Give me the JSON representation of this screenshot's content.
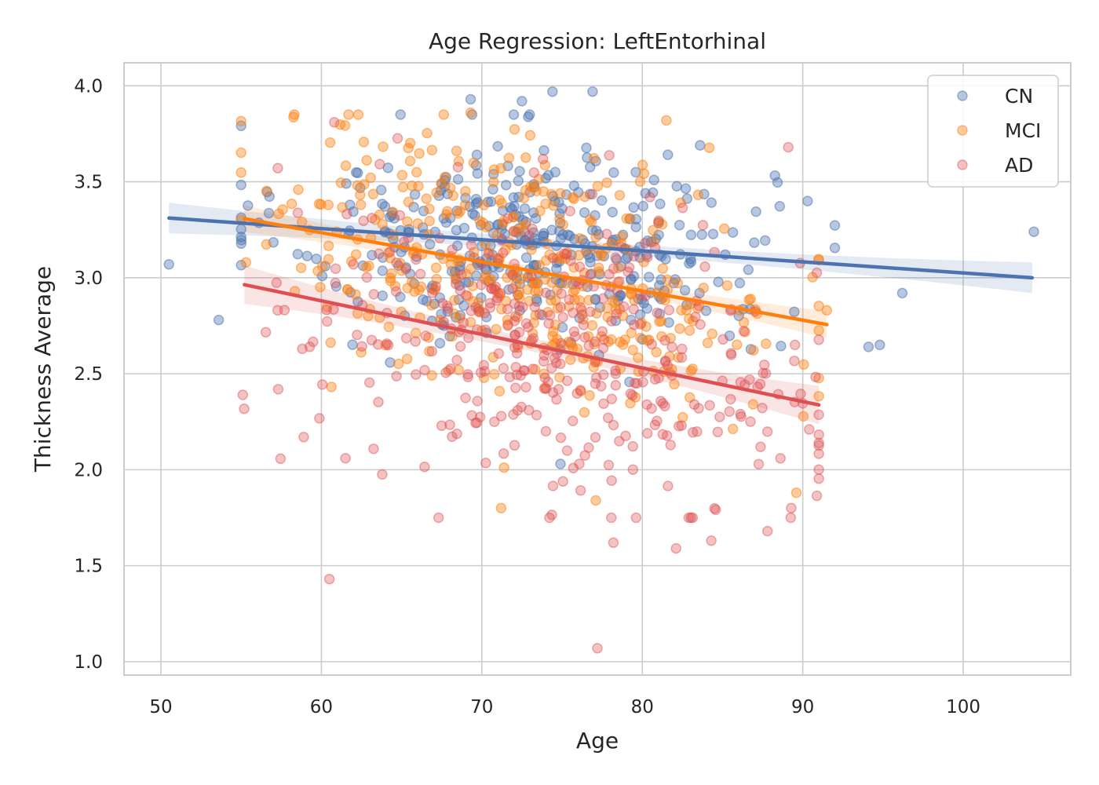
{
  "chart_data": {
    "type": "scatter",
    "title": "Age Regression: LeftEntorhinal",
    "xlabel": "Age",
    "ylabel": "Thickness Average",
    "xlim": [
      47.7,
      106.7
    ],
    "ylim": [
      0.93,
      4.12
    ],
    "xticks": [
      50,
      60,
      70,
      80,
      90,
      100
    ],
    "yticks": [
      1.0,
      1.5,
      2.0,
      2.5,
      3.0,
      3.5,
      4.0
    ],
    "grid": true,
    "legend_position": "top-right",
    "series": [
      {
        "name": "CN",
        "color": "#4c72b0",
        "point_alpha": 0.4,
        "n_random": 380,
        "age_mean": 73,
        "age_sd": 7.5,
        "noise_sd": 0.26,
        "fit": {
          "slope": -0.00578,
          "intercept": 3.603,
          "x_range": [
            50.5,
            104.3
          ],
          "ci": 0.08
        },
        "points": [
          [
            50.5,
            3.07
          ],
          [
            53.6,
            2.78
          ],
          [
            96.2,
            2.92
          ],
          [
            94.1,
            2.64
          ],
          [
            94.8,
            2.65
          ],
          [
            104.4,
            3.24
          ],
          [
            69.3,
            3.93
          ],
          [
            72.5,
            3.92
          ],
          [
            74.4,
            3.97
          ],
          [
            76.9,
            3.97
          ],
          [
            83.6,
            3.69
          ],
          [
            90.3,
            3.4
          ],
          [
            74.9,
            2.03
          ],
          [
            80.3,
            2.84
          ]
        ]
      },
      {
        "name": "MCI",
        "color": "#ff7f0e",
        "point_alpha": 0.4,
        "n_random": 420,
        "age_mean": 73,
        "age_sd": 8,
        "noise_sd": 0.32,
        "fit": {
          "slope": -0.0152,
          "intercept": 4.147,
          "x_range": [
            55.2,
            91.5
          ],
          "ci": 0.07
        },
        "points": [
          [
            71.2,
            1.8
          ],
          [
            77.1,
            1.84
          ],
          [
            89.6,
            1.88
          ],
          [
            81.5,
            3.82
          ],
          [
            62.3,
            3.85
          ],
          [
            69.3,
            3.86
          ],
          [
            55.3,
            3.08
          ],
          [
            91.5,
            2.83
          ]
        ]
      },
      {
        "name": "AD",
        "color": "#dd4f52",
        "point_alpha": 0.35,
        "n_random": 380,
        "age_mean": 75,
        "age_sd": 8,
        "noise_sd": 0.38,
        "fit": {
          "slope": -0.0175,
          "intercept": 3.93,
          "x_range": [
            55.2,
            91.0
          ],
          "ci": 0.1
        },
        "points": [
          [
            77.2,
            1.07
          ],
          [
            60.5,
            1.43
          ],
          [
            82.1,
            1.59
          ],
          [
            78.2,
            1.62
          ],
          [
            84.3,
            1.63
          ],
          [
            87.8,
            1.68
          ],
          [
            55.1,
            2.39
          ],
          [
            58.9,
            2.17
          ],
          [
            60.8,
            3.81
          ],
          [
            89.1,
            3.68
          ],
          [
            61.5,
            2.06
          ],
          [
            90.4,
            2.21
          ]
        ]
      }
    ]
  }
}
